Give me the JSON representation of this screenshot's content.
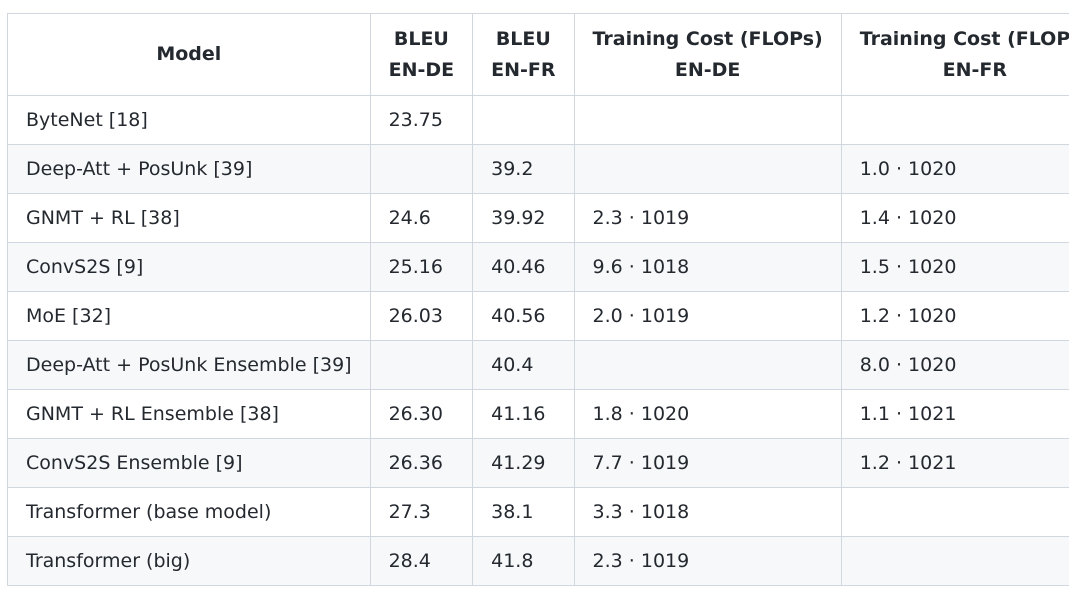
{
  "table": {
    "headers": [
      {
        "lines": [
          "Model"
        ]
      },
      {
        "lines": [
          "BLEU",
          "EN-DE"
        ]
      },
      {
        "lines": [
          "BLEU",
          "EN-FR"
        ]
      },
      {
        "lines": [
          "Training Cost (FLOPs)",
          "EN-DE"
        ]
      },
      {
        "lines": [
          "Training Cost (FLOPs)",
          "EN-FR"
        ]
      }
    ],
    "rows": [
      [
        "ByteNet [18]",
        "23.75",
        "",
        "",
        ""
      ],
      [
        "Deep-Att + PosUnk [39]",
        "",
        "39.2",
        "",
        "1.0 · 1020"
      ],
      [
        "GNMT + RL [38]",
        "24.6",
        "39.92",
        "2.3 · 1019",
        "1.4 · 1020"
      ],
      [
        "ConvS2S [9]",
        "25.16",
        "40.46",
        "9.6 · 1018",
        "1.5 · 1020"
      ],
      [
        "MoE [32]",
        "26.03",
        "40.56",
        "2.0 · 1019",
        "1.2 · 1020"
      ],
      [
        "Deep-Att + PosUnk Ensemble [39]",
        "",
        "40.4",
        "",
        "8.0 · 1020"
      ],
      [
        "GNMT + RL Ensemble [38]",
        "26.30",
        "41.16",
        "1.8 · 1020",
        "1.1 · 1021"
      ],
      [
        "ConvS2S Ensemble [9]",
        "26.36",
        "41.29",
        "7.7 · 1019",
        "1.2 · 1021"
      ],
      [
        "Transformer (base model)",
        "27.3",
        "38.1",
        "3.3 · 1018",
        ""
      ],
      [
        "Transformer (big)",
        "28.4",
        "41.8",
        "2.3 · 1019",
        ""
      ]
    ]
  }
}
